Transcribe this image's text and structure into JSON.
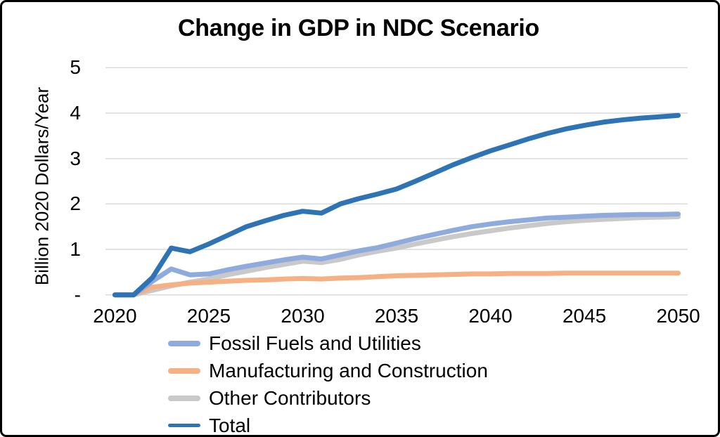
{
  "chart_data": {
    "type": "line",
    "title": "Change in GDP in NDC Scenario",
    "ylabel": "Billion 2020 Dollars/Year",
    "xlabel": "",
    "x": [
      2020,
      2021,
      2022,
      2023,
      2024,
      2025,
      2026,
      2027,
      2028,
      2029,
      2030,
      2031,
      2032,
      2033,
      2034,
      2035,
      2036,
      2037,
      2038,
      2039,
      2040,
      2041,
      2042,
      2043,
      2044,
      2045,
      2046,
      2047,
      2048,
      2049,
      2050
    ],
    "x_tick_labels": [
      "2020",
      "2025",
      "2030",
      "2035",
      "2040",
      "2045",
      "2050"
    ],
    "y_ticks": [
      {
        "value": 0,
        "label": "-"
      },
      {
        "value": 1,
        "label": "1"
      },
      {
        "value": 2,
        "label": "2"
      },
      {
        "value": 3,
        "label": "3"
      },
      {
        "value": 4,
        "label": "4"
      },
      {
        "value": 5,
        "label": "5"
      }
    ],
    "ylim": [
      0,
      5
    ],
    "grid": true,
    "legend_position": "bottom-left",
    "series": [
      {
        "name": "Fossil Fuels and Utilities",
        "color": "#8FAADC",
        "values": [
          0,
          0,
          0.3,
          0.57,
          0.44,
          0.46,
          0.55,
          0.63,
          0.7,
          0.77,
          0.83,
          0.79,
          0.88,
          0.97,
          1.04,
          1.14,
          1.24,
          1.33,
          1.42,
          1.5,
          1.56,
          1.61,
          1.65,
          1.69,
          1.71,
          1.73,
          1.75,
          1.76,
          1.77,
          1.77,
          1.78
        ]
      },
      {
        "name": "Manufacturing and Construction",
        "color": "#F5B183",
        "values": [
          0,
          0,
          0.17,
          0.22,
          0.26,
          0.28,
          0.3,
          0.32,
          0.33,
          0.35,
          0.36,
          0.35,
          0.37,
          0.38,
          0.4,
          0.42,
          0.43,
          0.44,
          0.45,
          0.46,
          0.46,
          0.47,
          0.47,
          0.47,
          0.48,
          0.48,
          0.48,
          0.48,
          0.48,
          0.48,
          0.48
        ]
      },
      {
        "name": "Other Contributors",
        "color": "#C9C9C9",
        "values": [
          0,
          0,
          0.1,
          0.2,
          0.28,
          0.35,
          0.44,
          0.52,
          0.6,
          0.67,
          0.74,
          0.71,
          0.78,
          0.88,
          0.96,
          1.03,
          1.12,
          1.2,
          1.28,
          1.35,
          1.41,
          1.47,
          1.52,
          1.57,
          1.61,
          1.64,
          1.66,
          1.68,
          1.7,
          1.71,
          1.72
        ]
      },
      {
        "name": "Total",
        "color": "#2E74B5",
        "values": [
          0,
          0,
          0.38,
          1.03,
          0.95,
          1.12,
          1.31,
          1.5,
          1.63,
          1.75,
          1.84,
          1.8,
          2.0,
          2.12,
          2.22,
          2.33,
          2.5,
          2.68,
          2.86,
          3.02,
          3.17,
          3.3,
          3.43,
          3.55,
          3.65,
          3.73,
          3.8,
          3.85,
          3.89,
          3.92,
          3.95
        ]
      }
    ]
  },
  "style": {
    "background": "#FFFFFF",
    "frame_border": "#000000",
    "grid_color": "#D9D9D9",
    "text_color": "#000000"
  }
}
